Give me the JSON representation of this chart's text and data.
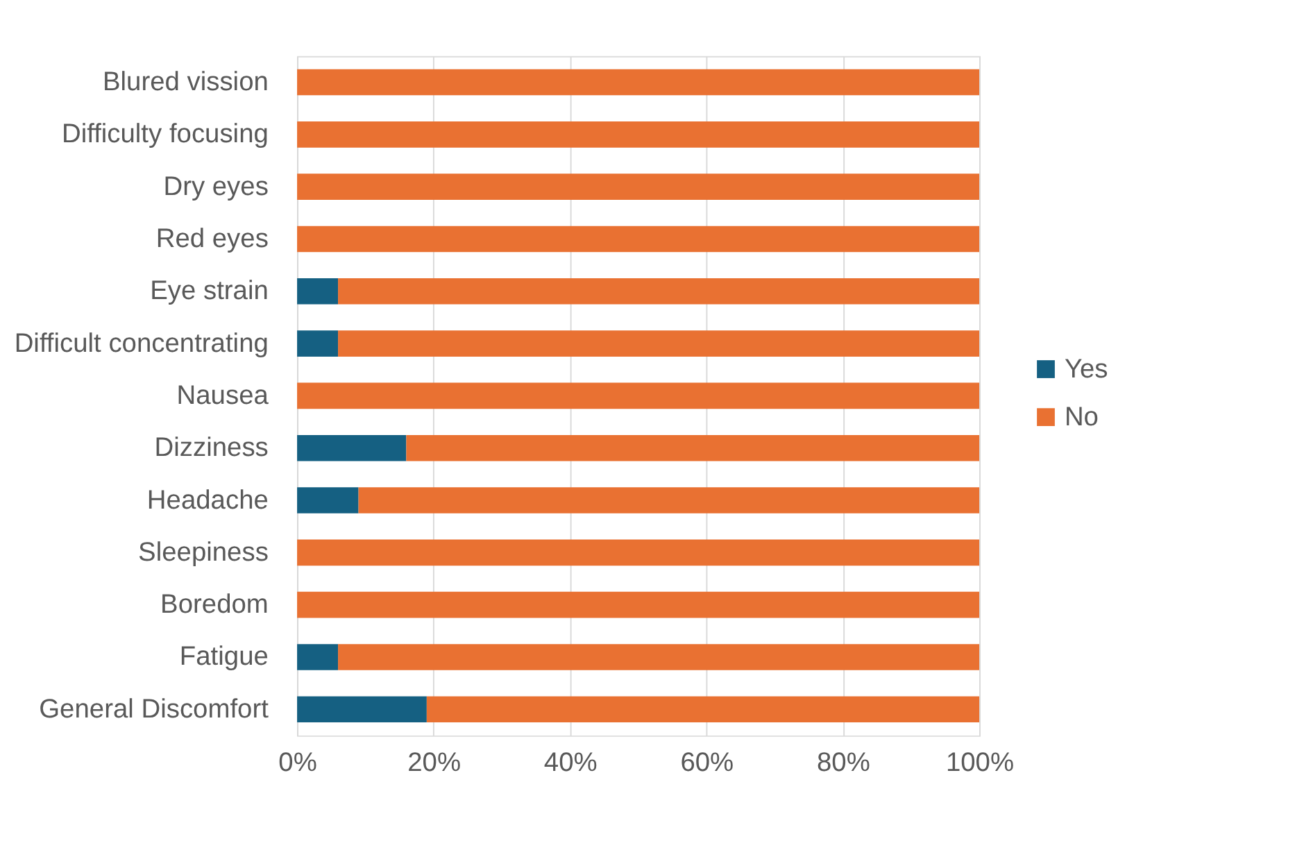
{
  "chart_data": {
    "type": "bar",
    "orientation": "horizontal",
    "stacked": true,
    "categories": [
      "Blured vission",
      "Difficulty focusing",
      "Dry eyes",
      "Red eyes",
      "Eye strain",
      "Difficult concentrating",
      "Nausea",
      "Dizziness",
      "Headache",
      "Sleepiness",
      "Boredom",
      "Fatigue",
      "General Discomfort"
    ],
    "series": [
      {
        "name": "Yes",
        "color": "#156082",
        "values": [
          0,
          0,
          0,
          0,
          6,
          6,
          0,
          16,
          9,
          0,
          0,
          6,
          19
        ]
      },
      {
        "name": "No",
        "color": "#e97132",
        "values": [
          100,
          100,
          100,
          100,
          94,
          94,
          100,
          84,
          91,
          100,
          100,
          94,
          81
        ]
      }
    ],
    "xlim": [
      0,
      100
    ],
    "xticks": [
      {
        "value": 0,
        "label": "0%"
      },
      {
        "value": 20,
        "label": "20%"
      },
      {
        "value": 40,
        "label": "40%"
      },
      {
        "value": 60,
        "label": "60%"
      },
      {
        "value": 80,
        "label": "80%"
      },
      {
        "value": 100,
        "label": "100%"
      }
    ],
    "grid": "x",
    "legend": "right"
  }
}
